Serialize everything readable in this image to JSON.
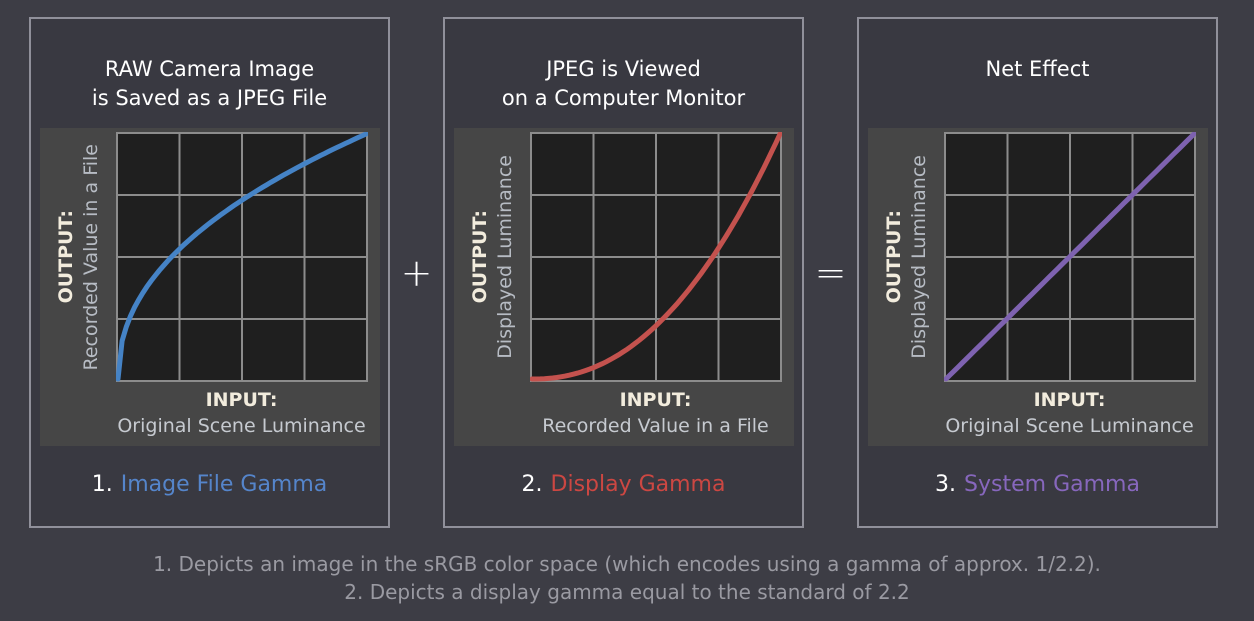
{
  "colors": {
    "page_bg": "#3d3d45",
    "panel_bg": "#393941",
    "panel_border": "#90909a",
    "chart_bg": "#464646",
    "plot_bg": "#1f1f1f",
    "grid": "#8c8c8c",
    "blue_curve": "#4583c6",
    "red_curve": "#c4524e",
    "purple_curve": "#7e62b0"
  },
  "operators": {
    "plus": "+",
    "equals": "="
  },
  "panels": [
    {
      "title_line1": "RAW Camera Image",
      "title_line2": "is Saved as a JPEG File",
      "y_axis_bold": "OUTPUT:",
      "y_axis_label": "Recorded Value in a File",
      "x_axis_bold": "INPUT:",
      "x_axis_label": "Original Scene Luminance",
      "caption_number": "1.",
      "caption_label": "Image File Gamma",
      "caption_color": "#5585cb"
    },
    {
      "title_line1": "JPEG is Viewed",
      "title_line2": "on a Computer Monitor",
      "y_axis_bold": "OUTPUT:",
      "y_axis_label": "Displayed Luminance",
      "x_axis_bold": "INPUT:",
      "x_axis_label": "Recorded Value in a File",
      "caption_number": "2.",
      "caption_label": "Display Gamma",
      "caption_color": "#cc4742"
    },
    {
      "title_line1": "Net Effect",
      "title_line2": "",
      "y_axis_bold": "OUTPUT:",
      "y_axis_label": "Displayed Luminance",
      "x_axis_bold": "INPUT:",
      "x_axis_label": "Original Scene Luminance",
      "caption_number": "3.",
      "caption_label": "System Gamma",
      "caption_color": "#8767bd"
    }
  ],
  "chart_data": [
    {
      "type": "line",
      "title": "RAW Camera Image is Saved as a JPEG File",
      "xlabel": "INPUT: Original Scene Luminance",
      "ylabel": "OUTPUT: Recorded Value in a File",
      "x_range": [
        0,
        1
      ],
      "y_range": [
        0,
        1
      ],
      "grid_divisions": 4,
      "grid_on": true,
      "gamma_exponent": 0.4545,
      "line_color": "#4583c6",
      "points": [
        [
          0,
          0
        ],
        [
          0.1,
          0.351
        ],
        [
          0.2,
          0.481
        ],
        [
          0.3,
          0.579
        ],
        [
          0.4,
          0.659
        ],
        [
          0.5,
          0.73
        ],
        [
          0.6,
          0.793
        ],
        [
          0.7,
          0.85
        ],
        [
          0.8,
          0.904
        ],
        [
          0.9,
          0.953
        ],
        [
          1,
          1
        ]
      ]
    },
    {
      "type": "line",
      "title": "JPEG is Viewed on a Computer Monitor",
      "xlabel": "INPUT: Recorded Value in a File",
      "ylabel": "OUTPUT: Displayed Luminance",
      "x_range": [
        0,
        1
      ],
      "y_range": [
        0,
        1
      ],
      "grid_divisions": 4,
      "grid_on": true,
      "gamma_exponent": 2.2,
      "line_color": "#c4524e",
      "points": [
        [
          0,
          0
        ],
        [
          0.1,
          0.006
        ],
        [
          0.2,
          0.029
        ],
        [
          0.3,
          0.071
        ],
        [
          0.4,
          0.133
        ],
        [
          0.5,
          0.218
        ],
        [
          0.6,
          0.325
        ],
        [
          0.7,
          0.456
        ],
        [
          0.8,
          0.612
        ],
        [
          0.9,
          0.793
        ],
        [
          1,
          1
        ]
      ]
    },
    {
      "type": "line",
      "title": "Net Effect",
      "xlabel": "INPUT: Original Scene Luminance",
      "ylabel": "OUTPUT: Displayed Luminance",
      "x_range": [
        0,
        1
      ],
      "y_range": [
        0,
        1
      ],
      "grid_divisions": 4,
      "grid_on": true,
      "gamma_exponent": 1.0,
      "line_color": "#7e62b0",
      "points": [
        [
          0,
          0
        ],
        [
          0.1,
          0.1
        ],
        [
          0.2,
          0.2
        ],
        [
          0.3,
          0.3
        ],
        [
          0.4,
          0.4
        ],
        [
          0.5,
          0.5
        ],
        [
          0.6,
          0.6
        ],
        [
          0.7,
          0.7
        ],
        [
          0.8,
          0.8
        ],
        [
          0.9,
          0.9
        ],
        [
          1,
          1
        ]
      ]
    }
  ],
  "footnotes": [
    "1. Depicts an image in the sRGB color space (which encodes using a gamma of approx. 1/2.2).",
    "2. Depicts a display gamma equal to the standard of 2.2"
  ]
}
